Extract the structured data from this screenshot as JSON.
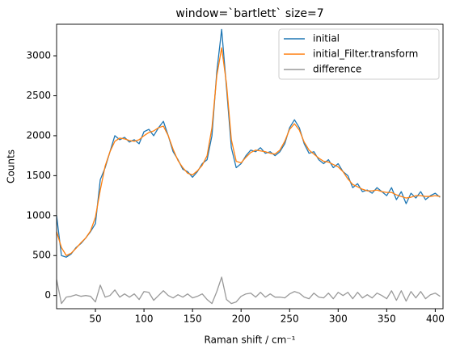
{
  "chart_data": {
    "type": "line",
    "title": "window=`bartlett` size=7",
    "x_label": "Raman shift / cm⁻¹",
    "y_label": "Counts",
    "x": [
      10,
      15,
      20,
      25,
      30,
      35,
      40,
      45,
      50,
      55,
      60,
      65,
      70,
      75,
      80,
      85,
      90,
      95,
      100,
      105,
      110,
      115,
      120,
      125,
      130,
      135,
      140,
      145,
      150,
      155,
      160,
      165,
      170,
      175,
      180,
      185,
      190,
      195,
      200,
      205,
      210,
      215,
      220,
      225,
      230,
      235,
      240,
      245,
      250,
      255,
      260,
      265,
      270,
      275,
      280,
      285,
      290,
      295,
      300,
      305,
      310,
      315,
      320,
      325,
      330,
      335,
      340,
      345,
      350,
      355,
      360,
      365,
      370,
      375,
      380,
      385,
      390,
      395,
      400,
      405
    ],
    "series": [
      {
        "name": "initial",
        "color": "#1f77b4",
        "values": [
          1000,
          500,
          480,
          520,
          600,
          650,
          720,
          800,
          900,
          1450,
          1600,
          1800,
          2000,
          1950,
          1980,
          1920,
          1950,
          1900,
          2050,
          2080,
          2000,
          2100,
          2180,
          2000,
          1800,
          1700,
          1580,
          1550,
          1480,
          1550,
          1650,
          1700,
          2000,
          2800,
          3330,
          2600,
          1850,
          1600,
          1650,
          1750,
          1820,
          1800,
          1850,
          1780,
          1800,
          1750,
          1800,
          1900,
          2100,
          2200,
          2100,
          1900,
          1780,
          1800,
          1700,
          1650,
          1700,
          1600,
          1650,
          1550,
          1500,
          1350,
          1400,
          1300,
          1320,
          1280,
          1350,
          1300,
          1250,
          1350,
          1200,
          1300,
          1150,
          1280,
          1220,
          1300,
          1200,
          1250,
          1280,
          1230
        ]
      },
      {
        "name": "initial_Filter.transform",
        "color": "#ff7f0e",
        "values": [
          800,
          600,
          500,
          530,
          590,
          660,
          720,
          810,
          980,
          1320,
          1620,
          1800,
          1930,
          1970,
          1960,
          1940,
          1930,
          1950,
          2000,
          2040,
          2060,
          2100,
          2120,
          2000,
          1830,
          1690,
          1600,
          1530,
          1510,
          1560,
          1630,
          1750,
          2100,
          2750,
          3100,
          2650,
          1950,
          1680,
          1660,
          1730,
          1790,
          1820,
          1810,
          1800,
          1780,
          1770,
          1820,
          1930,
          2080,
          2150,
          2070,
          1920,
          1820,
          1770,
          1720,
          1680,
          1670,
          1640,
          1610,
          1550,
          1460,
          1390,
          1360,
          1330,
          1310,
          1310,
          1320,
          1300,
          1290,
          1290,
          1260,
          1240,
          1220,
          1230,
          1250,
          1250,
          1240,
          1240,
          1250,
          1240
        ]
      },
      {
        "name": "difference",
        "color": "#999999",
        "values": [
          200,
          -100,
          -20,
          -10,
          10,
          -10,
          0,
          -10,
          -80,
          130,
          -20,
          0,
          70,
          -20,
          20,
          -20,
          20,
          -50,
          50,
          40,
          -60,
          0,
          60,
          0,
          -30,
          10,
          -20,
          20,
          -30,
          -10,
          20,
          -50,
          -100,
          50,
          230,
          -50,
          -100,
          -80,
          -10,
          20,
          30,
          -20,
          40,
          -20,
          20,
          -20,
          -20,
          -30,
          20,
          50,
          30,
          -20,
          -40,
          30,
          -20,
          -30,
          30,
          -40,
          40,
          0,
          40,
          -40,
          40,
          -30,
          10,
          -30,
          30,
          0,
          -40,
          60,
          -60,
          60,
          -70,
          50,
          -30,
          50,
          -40,
          10,
          30,
          -10
        ]
      }
    ],
    "xlim": [
      10,
      408
    ],
    "ylim": [
      -165,
      3395
    ],
    "xticks": [
      50,
      100,
      150,
      200,
      250,
      300,
      350,
      400
    ],
    "yticks": [
      0,
      500,
      1000,
      1500,
      2000,
      2500,
      3000
    ],
    "legend": "upper right"
  }
}
